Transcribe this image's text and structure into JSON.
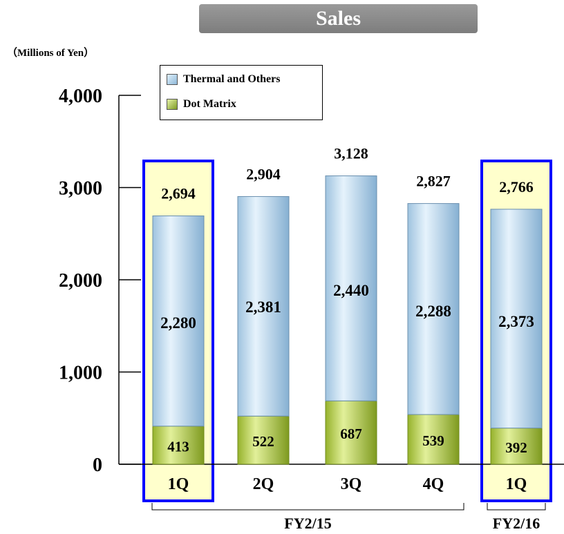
{
  "chart_data": {
    "type": "bar",
    "stacked": true,
    "title": "Sales",
    "unit_label": "（Millions of Yen）",
    "categories": [
      "1Q",
      "2Q",
      "3Q",
      "4Q",
      "1Q"
    ],
    "groups": [
      {
        "label": "FY2/15",
        "categories": [
          0,
          1,
          2,
          3
        ]
      },
      {
        "label": "FY2/16",
        "categories": [
          4
        ]
      }
    ],
    "highlighted_categories": [
      0,
      4
    ],
    "series": [
      {
        "name": "Dot Matrix",
        "values": [
          413,
          522,
          687,
          539,
          392
        ],
        "color": "#b5cc4a"
      },
      {
        "name": "Thermal and Others",
        "values": [
          2280,
          2381,
          2440,
          2288,
          2373
        ],
        "color": "#b9d7ee"
      }
    ],
    "totals": [
      2694,
      2904,
      3128,
      2827,
      2766
    ],
    "ylim": [
      0,
      4000
    ],
    "yticks": [
      0,
      1000,
      2000,
      3000,
      4000
    ],
    "ytick_labels": [
      "0",
      "1,000",
      "2,000",
      "3,000",
      "4,000"
    ],
    "legend_position": "top-left",
    "grid": false,
    "highlight_fill": "#ffffcc",
    "highlight_border": "#0000ff"
  }
}
